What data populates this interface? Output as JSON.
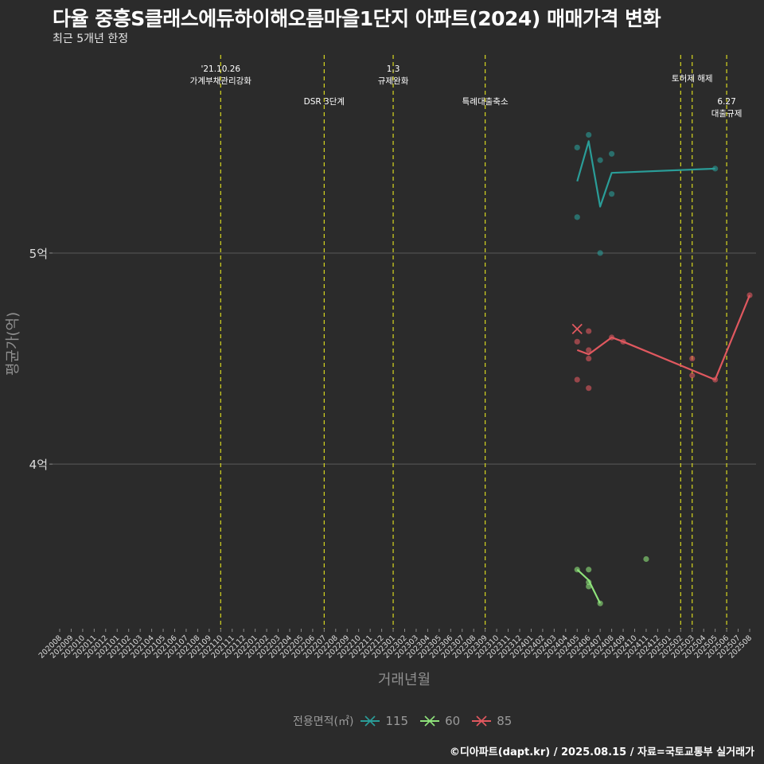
{
  "title": "다율 중흥S클래스에듀하이해오름마을1단지 아파트(2024) 매매가격 변화",
  "subtitle": "최근 5개년 한정",
  "caption": "©디아파트(dapt.kr) / 2025.08.15 / 자료=국토교통부 실거래가",
  "colors": {
    "background": "#2b2b2b",
    "grid": "#5a5a5a",
    "vline": "#d8d820",
    "s115": "#2a9d98",
    "s60": "#8ee27a",
    "s85": "#e0585f"
  },
  "chart_data": {
    "type": "line",
    "title": "다율 중흥S클래스에듀하이해오름마을1단지 아파트(2024) 매매가격 변화",
    "subtitle": "최근 5개년 한정",
    "xlabel": "거래년월",
    "ylabel": "평균가(억)",
    "y_ticks": [
      {
        "value": 4.0,
        "label": "4억"
      },
      {
        "value": 5.0,
        "label": "5억"
      }
    ],
    "ylim": [
      3.22,
      5.95
    ],
    "x_ticks": [
      "202008",
      "202009",
      "202010",
      "202011",
      "202012",
      "202101",
      "202102",
      "202103",
      "202104",
      "202105",
      "202106",
      "202107",
      "202108",
      "202109",
      "202110",
      "202111",
      "202112",
      "202201",
      "202202",
      "202203",
      "202204",
      "202205",
      "202206",
      "202207",
      "202208",
      "202209",
      "202210",
      "202211",
      "202212",
      "202301",
      "202302",
      "202303",
      "202304",
      "202305",
      "202306",
      "202307",
      "202308",
      "202309",
      "202310",
      "202311",
      "202312",
      "202401",
      "202402",
      "202403",
      "202404",
      "202405",
      "202406",
      "202407",
      "202408",
      "202409",
      "202410",
      "202411",
      "202412",
      "202501",
      "202502",
      "202503",
      "202504",
      "202505",
      "202506",
      "202507",
      "202508"
    ],
    "annotations": [
      {
        "month": "202110",
        "lines": [
          "'21.10.26",
          "가계부채관리강화"
        ],
        "row": 1
      },
      {
        "month": "202207",
        "lines": [
          "DSR 3단계"
        ],
        "row": 2
      },
      {
        "month": "202301",
        "lines": [
          "1.3",
          "규제완화"
        ],
        "row": 1
      },
      {
        "month": "202309",
        "lines": [
          "특례대출축소"
        ],
        "row": 2
      },
      {
        "month": "202502",
        "lines": [],
        "row": 0
      },
      {
        "month": "202503",
        "lines": [
          "토허제 해제"
        ],
        "row": 1
      },
      {
        "month": "202506",
        "lines": [
          "6.27",
          "대출규제"
        ],
        "row": 2
      }
    ],
    "legend_title": "전용면적(㎡)",
    "series": [
      {
        "name": "115",
        "color_key": "s115",
        "line": [
          {
            "x": "202405",
            "y": 5.34
          },
          {
            "x": "202406",
            "y": 5.53
          },
          {
            "x": "202407",
            "y": 5.22
          },
          {
            "x": "202408",
            "y": 5.38
          },
          {
            "x": "202505",
            "y": 5.4
          }
        ],
        "points": [
          {
            "x": "202405",
            "y": 5.5
          },
          {
            "x": "202405",
            "y": 5.17
          },
          {
            "x": "202406",
            "y": 5.56
          },
          {
            "x": "202407",
            "y": 5.44
          },
          {
            "x": "202407",
            "y": 5.0
          },
          {
            "x": "202408",
            "y": 5.47
          },
          {
            "x": "202408",
            "y": 5.28
          },
          {
            "x": "202505",
            "y": 5.4
          }
        ],
        "crosses": []
      },
      {
        "name": "60",
        "color_key": "s60",
        "line": [
          {
            "x": "202405",
            "y": 3.5
          },
          {
            "x": "202406",
            "y": 3.45
          },
          {
            "x": "202407",
            "y": 3.34
          }
        ],
        "points": [
          {
            "x": "202405",
            "y": 3.5
          },
          {
            "x": "202406",
            "y": 3.5
          },
          {
            "x": "202406",
            "y": 3.44
          },
          {
            "x": "202406",
            "y": 3.42
          },
          {
            "x": "202407",
            "y": 3.34
          },
          {
            "x": "202411",
            "y": 3.55
          }
        ],
        "crosses": []
      },
      {
        "name": "85",
        "color_key": "s85",
        "line": [
          {
            "x": "202405",
            "y": 4.54
          },
          {
            "x": "202406",
            "y": 4.52
          },
          {
            "x": "202408",
            "y": 4.6
          },
          {
            "x": "202409",
            "y": 4.58
          },
          {
            "x": "202505",
            "y": 4.4
          },
          {
            "x": "202508",
            "y": 4.8
          }
        ],
        "points": [
          {
            "x": "202405",
            "y": 4.58
          },
          {
            "x": "202405",
            "y": 4.4
          },
          {
            "x": "202406",
            "y": 4.63
          },
          {
            "x": "202406",
            "y": 4.54
          },
          {
            "x": "202406",
            "y": 4.5
          },
          {
            "x": "202406",
            "y": 4.36
          },
          {
            "x": "202408",
            "y": 4.6
          },
          {
            "x": "202409",
            "y": 4.58
          },
          {
            "x": "202503",
            "y": 4.5
          },
          {
            "x": "202503",
            "y": 4.42
          },
          {
            "x": "202505",
            "y": 4.4
          },
          {
            "x": "202508",
            "y": 4.8
          }
        ],
        "crosses": [
          {
            "x": "202405",
            "y": 4.64
          }
        ]
      }
    ]
  }
}
